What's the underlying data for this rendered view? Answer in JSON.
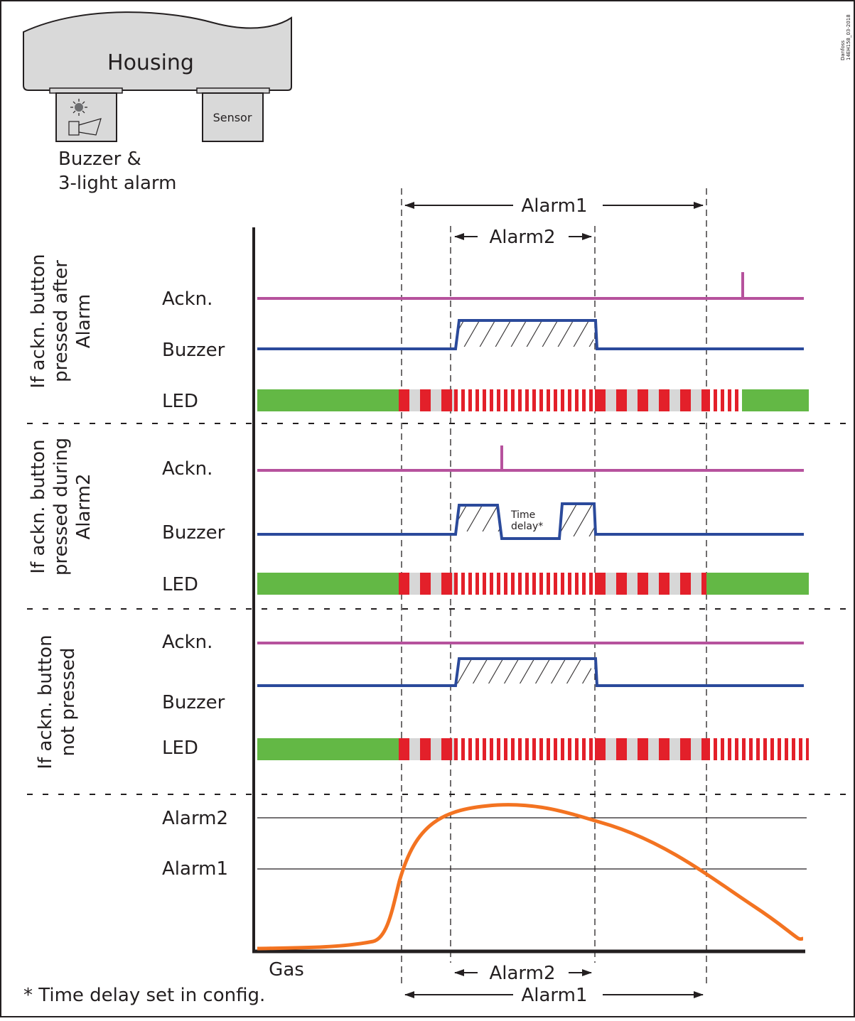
{
  "housing": {
    "title": "Housing",
    "sensor_label": "Sensor",
    "buzzer_label_line1": "Buzzer &",
    "buzzer_label_line2": "3-light alarm",
    "light_icon": "light-icon",
    "horn_icon": "horn-icon"
  },
  "doc_ref": {
    "line1": "Danfoss",
    "line2": "14EH158_03-2018"
  },
  "top_ranges": {
    "alarm1": "Alarm1",
    "alarm2": "Alarm2"
  },
  "sections": [
    {
      "title_lines": [
        "If ackn. button",
        "pressed after",
        "Alarm"
      ],
      "ackn": "Ackn.",
      "buzzer": "Buzzer",
      "led": "LED"
    },
    {
      "title_lines": [
        "If ackn. button",
        "pressed during",
        "Alarm2"
      ],
      "ackn": "Ackn.",
      "buzzer": "Buzzer",
      "led": "LED",
      "time_delay_lines": [
        "Time",
        "delay*"
      ]
    },
    {
      "title_lines": [
        "If ackn. button",
        "not pressed"
      ],
      "ackn": "Ackn.",
      "buzzer": "Buzzer",
      "led": "LED"
    }
  ],
  "gas_chart": {
    "level_alarm2": "Alarm2",
    "level_alarm1": "Alarm1",
    "axis_label": "Gas"
  },
  "bottom_ranges": {
    "alarm2": "Alarm2",
    "alarm1": "Alarm1"
  },
  "footnote": "* Time delay set in config.",
  "colors": {
    "ackn": "#b6529d",
    "buzzer": "#2b4a9b",
    "led_green": "#63b845",
    "led_red": "#e3202a",
    "led_grey": "#d7d7d7",
    "gas_curve": "#f37321",
    "axis": "#231f20"
  }
}
